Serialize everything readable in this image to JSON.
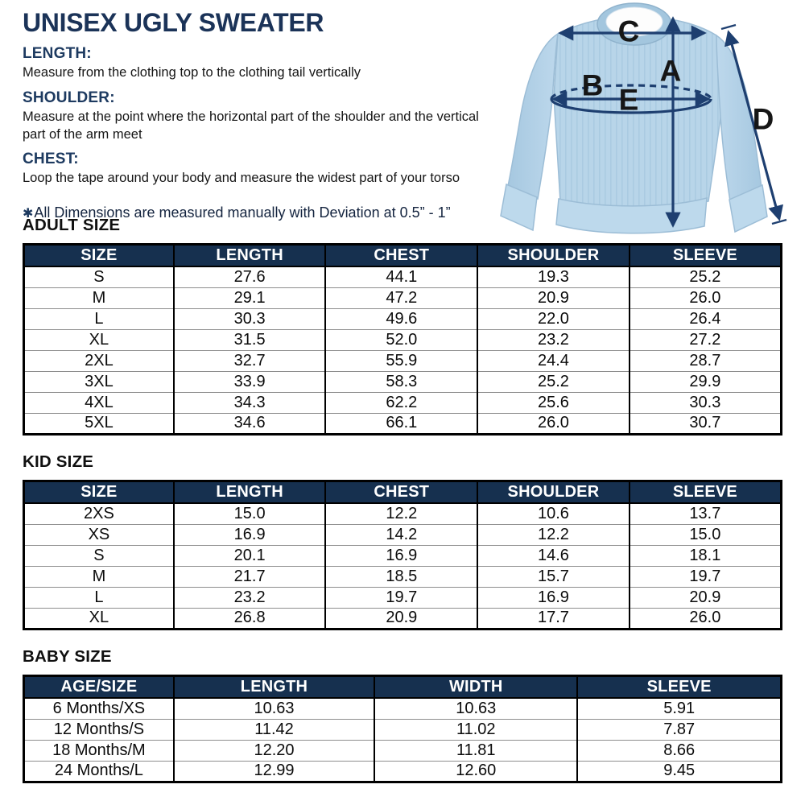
{
  "title": "UNISEX UGLY SWEATER",
  "instructions": [
    {
      "heading": "LENGTH:",
      "text": "Measure from the clothing top to the clothing tail vertically"
    },
    {
      "heading": "SHOULDER:",
      "text": "Measure at the point where the horizontal part of the shoulder and the vertical part of the arm meet"
    },
    {
      "heading": "CHEST:",
      "text": "Loop the tape around your body and measure the widest part of your torso"
    }
  ],
  "note": {
    "symbol": "✱",
    "text": "All Dimensions are measured manually with Deviation at 0.5” - 1”"
  },
  "diagram": {
    "labels": {
      "a": "A",
      "b": "B",
      "c": "C",
      "d": "D",
      "e": "E"
    }
  },
  "tables": [
    {
      "title": "ADULT SIZE",
      "headers": [
        "SIZE",
        "LENGTH",
        "CHEST",
        "SHOULDER",
        "SLEEVE"
      ],
      "rows": [
        [
          "S",
          "27.6",
          "44.1",
          "19.3",
          "25.2"
        ],
        [
          "M",
          "29.1",
          "47.2",
          "20.9",
          "26.0"
        ],
        [
          "L",
          "30.3",
          "49.6",
          "22.0",
          "26.4"
        ],
        [
          "XL",
          "31.5",
          "52.0",
          "23.2",
          "27.2"
        ],
        [
          "2XL",
          "32.7",
          "55.9",
          "24.4",
          "28.7"
        ],
        [
          "3XL",
          "33.9",
          "58.3",
          "25.2",
          "29.9"
        ],
        [
          "4XL",
          "34.3",
          "62.2",
          "25.6",
          "30.3"
        ],
        [
          "5XL",
          "34.6",
          "66.1",
          "26.0",
          "30.7"
        ]
      ]
    },
    {
      "title": "KID SIZE",
      "headers": [
        "SIZE",
        "LENGTH",
        "CHEST",
        "SHOULDER",
        "SLEEVE"
      ],
      "rows": [
        [
          "2XS",
          "15.0",
          "12.2",
          "10.6",
          "13.7"
        ],
        [
          "XS",
          "16.9",
          "14.2",
          "12.2",
          "15.0"
        ],
        [
          "S",
          "20.1",
          "16.9",
          "14.6",
          "18.1"
        ],
        [
          "M",
          "21.7",
          "18.5",
          "15.7",
          "19.7"
        ],
        [
          "L",
          "23.2",
          "19.7",
          "16.9",
          "20.9"
        ],
        [
          "XL",
          "26.8",
          "20.9",
          "17.7",
          "26.0"
        ]
      ]
    },
    {
      "title": "BABY SIZE",
      "headers": [
        "AGE/SIZE",
        "LENGTH",
        "WIDTH",
        "SLEEVE"
      ],
      "rows": [
        [
          "6 Months/XS",
          "10.63",
          "10.63",
          "5.91"
        ],
        [
          "12 Months/S",
          "11.42",
          "11.02",
          "7.87"
        ],
        [
          "18 Months/M",
          "12.20",
          "11.81",
          "8.66"
        ],
        [
          "24 Months/L",
          "12.99",
          "12.60",
          "9.45"
        ]
      ]
    }
  ],
  "colors": {
    "title_navy": "#1b3358",
    "table_header_bg": "#16304f",
    "table_header_text": "#ffffff",
    "arrow_navy": "#1e3f70",
    "sweater_blue": "#b8d5e9"
  }
}
